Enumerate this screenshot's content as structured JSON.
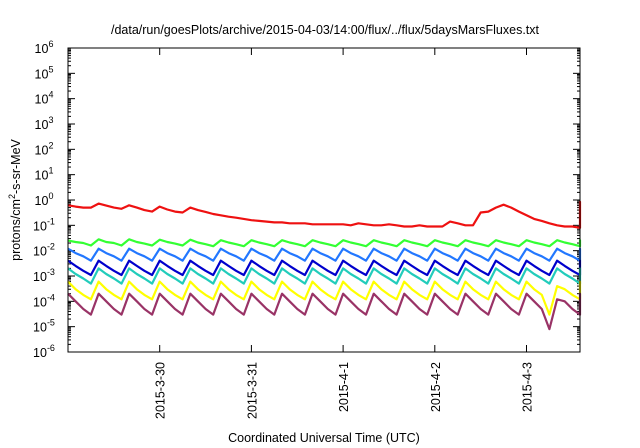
{
  "chart_data": {
    "type": "line",
    "title": "/data/run/goesPlots/archive/2015-04-03/14:00/flux/../flux/5daysMarsFluxes.txt",
    "xlabel": "Coordinated Universal Time (UTC)",
    "ylabel_parts": {
      "pre": "protons/cm",
      "sup": "2",
      "post": "-s-sr-MeV"
    },
    "y_scale": "log",
    "ylim": [
      1e-06,
      1000000.0
    ],
    "y_ticks": [
      {
        "value": 1e-06,
        "base": "10",
        "exp": "-6"
      },
      {
        "value": 1e-05,
        "base": "10",
        "exp": "-5"
      },
      {
        "value": 0.0001,
        "base": "10",
        "exp": "-4"
      },
      {
        "value": 0.001,
        "base": "10",
        "exp": "-3"
      },
      {
        "value": 0.01,
        "base": "10",
        "exp": "-2"
      },
      {
        "value": 0.1,
        "base": "10",
        "exp": "-1"
      },
      {
        "value": 1,
        "base": "10",
        "exp": "0"
      },
      {
        "value": 10.0,
        "base": "10",
        "exp": "1"
      },
      {
        "value": 100.0,
        "base": "10",
        "exp": "2"
      },
      {
        "value": 1000.0,
        "base": "10",
        "exp": "3"
      },
      {
        "value": 10000.0,
        "base": "10",
        "exp": "4"
      },
      {
        "value": 100000.0,
        "base": "10",
        "exp": "5"
      },
      {
        "value": 1000000.0,
        "base": "10",
        "exp": "6"
      }
    ],
    "xlim": [
      "2015-03-29T00:00",
      "2015-04-03T14:00"
    ],
    "x_ticks": [
      {
        "label": "2015-3-30",
        "value": "2015-03-30T00:00"
      },
      {
        "label": "2015-3-31",
        "value": "2015-03-31T00:00"
      },
      {
        "label": "2015-4-1",
        "value": "2015-04-01T00:00"
      },
      {
        "label": "2015-4-2",
        "value": "2015-04-02T00:00"
      },
      {
        "label": "2015-4-3",
        "value": "2015-04-03T00:00"
      }
    ],
    "grid": false,
    "legend": "none",
    "sampling_hours": 2,
    "series": [
      {
        "color": "#ee1111",
        "description": "uppermost curve; ~0.5 at start, falling to ~0.1, with recurring rises to ~0.8",
        "values": [
          0.62,
          0.55,
          0.5,
          0.5,
          0.72,
          0.6,
          0.5,
          0.45,
          0.62,
          0.5,
          0.4,
          0.35,
          0.55,
          0.42,
          0.35,
          0.32,
          0.5,
          0.4,
          0.34,
          0.28,
          0.25,
          0.22,
          0.2,
          0.18,
          0.16,
          0.15,
          0.14,
          0.13,
          0.13,
          0.12,
          0.12,
          0.12,
          0.11,
          0.11,
          0.11,
          0.11,
          0.11,
          0.1,
          0.12,
          0.11,
          0.1,
          0.1,
          0.11,
          0.1,
          0.09,
          0.09,
          0.1,
          0.09,
          0.09,
          0.09,
          0.14,
          0.12,
          0.1,
          0.1,
          0.32,
          0.35,
          0.5,
          0.65,
          0.5,
          0.35,
          0.25,
          0.18,
          0.15,
          0.12,
          0.1,
          0.09,
          0.09,
          0.08,
          0.08,
          0.08,
          0.09,
          0.08,
          0.08,
          0.13,
          0.11,
          0.2,
          0.45,
          0.85,
          0.75,
          0.6,
          0.45,
          0.3,
          0.22,
          0.16,
          0.13,
          0.11,
          0.1,
          0.09,
          0.08,
          0.08,
          0.12,
          0.11,
          0.16,
          0.5,
          0.55,
          0.48,
          0.6,
          0.65,
          0.55,
          0.45,
          0.35,
          0.25,
          0.18,
          0.14,
          0.12,
          0.11,
          0.1,
          0.09,
          0.1,
          0.12,
          0.1,
          0.16,
          0.16
        ]
      },
      {
        "color": "#33ff33",
        "description": "second curve; ~0.02-0.03 throughout, small dips every ~10 h",
        "values": [
          0.025,
          0.022,
          0.02,
          0.016,
          0.028,
          0.022,
          0.02,
          0.016,
          0.028,
          0.022,
          0.019,
          0.016,
          0.027,
          0.022,
          0.019,
          0.016,
          0.027,
          0.021,
          0.018,
          0.015,
          0.026,
          0.021,
          0.018,
          0.015,
          0.026,
          0.021,
          0.018,
          0.015,
          0.026,
          0.021,
          0.018,
          0.015,
          0.026,
          0.021,
          0.018,
          0.015,
          0.026,
          0.021,
          0.018,
          0.015,
          0.026,
          0.021,
          0.018,
          0.015,
          0.026,
          0.021,
          0.018,
          0.015,
          0.026,
          0.021,
          0.018,
          0.015,
          0.026,
          0.021,
          0.018,
          0.015,
          0.026,
          0.021,
          0.018,
          0.015,
          0.026,
          0.021,
          0.018,
          0.015,
          0.026,
          0.021,
          0.018,
          0.015,
          0.026,
          0.021,
          0.018,
          0.015,
          0.026,
          0.021,
          0.018,
          0.015,
          0.026,
          0.021,
          0.018,
          0.015,
          0.026,
          0.021,
          0.018,
          0.015,
          0.026,
          0.021,
          0.018,
          0.015,
          0.026,
          0.021,
          0.018,
          0.015,
          0.026,
          0.021,
          0.018,
          0.015,
          0.026,
          0.021,
          0.018,
          0.015,
          0.026,
          0.021,
          0.018,
          0.015,
          0.026,
          0.021,
          0.018,
          0.015,
          0.026,
          0.021,
          0.018,
          0.015,
          0.026
        ]
      },
      {
        "color": "#2277ff",
        "description": "third curve; sawtooth between ~0.004 and ~0.015",
        "values": [
          0.012,
          0.008,
          0.006,
          0.004,
          0.012,
          0.008,
          0.006,
          0.004,
          0.012,
          0.008,
          0.006,
          0.004,
          0.012,
          0.008,
          0.006,
          0.004,
          0.012,
          0.008,
          0.006,
          0.004,
          0.012,
          0.008,
          0.006,
          0.004,
          0.012,
          0.008,
          0.006,
          0.004,
          0.012,
          0.008,
          0.006,
          0.004,
          0.012,
          0.008,
          0.006,
          0.004,
          0.012,
          0.008,
          0.006,
          0.004,
          0.012,
          0.008,
          0.006,
          0.004,
          0.012,
          0.008,
          0.006,
          0.004,
          0.012,
          0.008,
          0.006,
          0.004,
          0.012,
          0.008,
          0.006,
          0.004,
          0.012,
          0.008,
          0.006,
          0.004,
          0.012,
          0.008,
          0.006,
          0.004,
          0.012,
          0.008,
          0.006,
          0.004,
          0.012,
          0.008,
          0.006,
          0.004,
          0.012,
          0.008,
          0.006,
          0.004,
          0.012,
          0.008,
          0.006,
          0.004,
          0.012,
          0.008,
          0.006,
          0.004,
          0.012,
          0.008,
          0.006,
          0.004,
          0.012,
          0.008,
          0.006,
          0.004,
          0.012,
          0.008,
          0.006,
          0.004,
          0.012,
          0.008,
          0.006,
          0.004,
          0.012,
          0.008,
          0.006,
          0.004,
          0.012,
          0.008,
          0.006,
          0.004,
          0.012,
          0.008,
          0.006,
          0.004,
          0.012
        ]
      },
      {
        "color": "#0000cc",
        "description": "fourth curve; sawtooth between ~0.001 and ~0.005",
        "values": [
          0.004,
          0.0025,
          0.0016,
          0.0011,
          0.004,
          0.0025,
          0.0016,
          0.0011,
          0.004,
          0.0025,
          0.0016,
          0.0011,
          0.004,
          0.0025,
          0.0016,
          0.0011,
          0.004,
          0.0025,
          0.0016,
          0.0011,
          0.004,
          0.0025,
          0.0016,
          0.0011,
          0.004,
          0.0025,
          0.0016,
          0.0011,
          0.004,
          0.0025,
          0.0016,
          0.0011,
          0.004,
          0.0025,
          0.0016,
          0.0011,
          0.004,
          0.0025,
          0.0016,
          0.0011,
          0.004,
          0.0025,
          0.0016,
          0.0011,
          0.004,
          0.0025,
          0.0016,
          0.0011,
          0.004,
          0.0025,
          0.0016,
          0.0011,
          0.004,
          0.0025,
          0.0016,
          0.0011,
          0.004,
          0.0025,
          0.0016,
          0.0011,
          0.004,
          0.0025,
          0.0016,
          0.0011,
          0.004,
          0.0025,
          0.0016,
          0.0011,
          0.004,
          0.0025,
          0.0016,
          0.0011,
          0.004,
          0.0025,
          0.0016,
          0.0011,
          0.004,
          0.0025,
          0.0016,
          0.0011,
          0.004,
          0.0025,
          0.0016,
          0.0011,
          0.004,
          0.0025,
          0.0016,
          0.0011,
          0.004,
          0.0025,
          0.0016,
          0.0011,
          0.004,
          0.0025,
          0.0016,
          0.0011,
          0.004,
          0.0025,
          0.0016,
          0.0011,
          0.004,
          0.0025,
          0.0016,
          0.0011,
          0.004,
          0.0025,
          0.0016,
          0.0011,
          0.004,
          0.0025,
          0.0016,
          0.0011,
          0.004
        ]
      },
      {
        "color": "#22ccbb",
        "description": "fifth curve; sawtooth between ~0.0005 and ~0.002",
        "values": [
          0.002,
          0.0012,
          0.0008,
          0.0005,
          0.002,
          0.0012,
          0.0008,
          0.0005,
          0.002,
          0.0012,
          0.0008,
          0.0005,
          0.002,
          0.0012,
          0.0008,
          0.0005,
          0.002,
          0.0012,
          0.0008,
          0.0005,
          0.002,
          0.0012,
          0.0008,
          0.0005,
          0.002,
          0.0012,
          0.0008,
          0.0005,
          0.002,
          0.0012,
          0.0008,
          0.0005,
          0.002,
          0.0012,
          0.0008,
          0.0005,
          0.002,
          0.0012,
          0.0008,
          0.0005,
          0.002,
          0.0012,
          0.0008,
          0.0005,
          0.002,
          0.0012,
          0.0008,
          0.0005,
          0.002,
          0.0012,
          0.0008,
          0.0005,
          0.002,
          0.0012,
          0.0008,
          0.0005,
          0.002,
          0.0012,
          0.0008,
          0.0005,
          0.002,
          0.0012,
          0.0008,
          0.0005,
          0.002,
          0.0012,
          0.0008,
          0.0005,
          0.002,
          0.0012,
          0.0008,
          0.0005,
          0.002,
          0.0012,
          0.0008,
          0.0005,
          0.002,
          0.0012,
          0.0008,
          0.0005,
          0.002,
          0.0012,
          0.0008,
          0.0005,
          0.002,
          0.0012,
          0.0008,
          0.0005,
          0.002,
          0.0012,
          0.0008,
          0.0005,
          0.002,
          0.0012,
          0.0008,
          0.0005,
          0.002,
          0.0012,
          0.0008,
          0.0005,
          0.002,
          0.0012,
          0.0008,
          0.0005,
          0.002,
          0.0012,
          0.0008,
          0.0005,
          0.002,
          0.0012,
          0.0008,
          0.0005,
          0.002
        ]
      },
      {
        "color": "#ffff00",
        "description": "sixth curve; sawtooth between ~0.00012 and ~0.0006, dip near 2015-4-1 18h",
        "values": [
          0.0006,
          0.0003,
          0.00018,
          0.00012,
          0.0006,
          0.0003,
          0.00018,
          0.00012,
          0.0006,
          0.0003,
          0.00018,
          0.00012,
          0.0006,
          0.0003,
          0.00018,
          0.00012,
          0.0006,
          0.0003,
          0.00018,
          0.00012,
          0.0006,
          0.0003,
          0.00018,
          0.00012,
          0.0006,
          0.0003,
          0.00018,
          0.00012,
          0.0006,
          0.0003,
          0.00018,
          0.00012,
          0.0006,
          0.0003,
          0.00018,
          0.00012,
          0.0006,
          0.0003,
          0.00018,
          0.00012,
          0.0006,
          0.0003,
          0.00018,
          0.00012,
          0.0006,
          0.0003,
          0.00018,
          0.00012,
          0.0006,
          0.0003,
          0.00018,
          0.00012,
          0.0006,
          0.0003,
          0.00018,
          0.00012,
          0.0006,
          0.0003,
          0.00018,
          0.00012,
          0.0006,
          0.0003,
          0.00018,
          3e-05,
          0.0004,
          0.0003,
          0.00018,
          0.00012,
          0.0006,
          0.0003,
          0.00018,
          0.00012,
          0.0006,
          0.0003,
          0.00018,
          0.00012,
          0.0006,
          0.0003,
          0.00018,
          0.00012,
          0.0006,
          0.0003,
          0.00018,
          0.00012,
          0.0006,
          0.0003,
          0.00018,
          0.00012,
          0.0006,
          0.0003,
          0.00018,
          0.00012,
          0.0006,
          0.0003,
          0.00018,
          0.00012,
          0.0006,
          0.0003,
          0.00018,
          0.00012,
          0.0006,
          0.0003,
          0.00018,
          0.00012,
          0.0006,
          0.0003,
          0.00018,
          0.00012,
          0.0006,
          0.0003,
          0.00018,
          0.00012,
          0.0006
        ]
      },
      {
        "color": "#993366",
        "description": "lowest curve; sawtooth between ~0.00003 and ~0.0002, dip near 2015-4-1 18h",
        "values": [
          0.0002,
          0.0001,
          5e-05,
          3e-05,
          0.0002,
          0.0001,
          5e-05,
          3e-05,
          0.0002,
          0.0001,
          5e-05,
          3e-05,
          0.0002,
          0.0001,
          5e-05,
          3e-05,
          0.0002,
          0.0001,
          5e-05,
          3e-05,
          0.0002,
          0.0001,
          5e-05,
          3e-05,
          0.0002,
          0.0001,
          5e-05,
          3e-05,
          0.0002,
          0.0001,
          5e-05,
          3e-05,
          0.0002,
          0.0001,
          5e-05,
          3e-05,
          0.0002,
          0.0001,
          5e-05,
          3e-05,
          0.0002,
          0.0001,
          5e-05,
          3e-05,
          0.0002,
          0.0001,
          5e-05,
          3e-05,
          0.0002,
          0.0001,
          5e-05,
          3e-05,
          0.0002,
          0.0001,
          5e-05,
          3e-05,
          0.0002,
          0.0001,
          5e-05,
          3e-05,
          0.0002,
          0.0001,
          5e-05,
          8e-06,
          0.00012,
          0.0001,
          5e-05,
          3e-05,
          0.0002,
          0.0001,
          5e-05,
          3e-05,
          0.0002,
          0.0001,
          5e-05,
          3e-05,
          0.0002,
          0.0001,
          5e-05,
          3e-05,
          0.0002,
          0.0001,
          5e-05,
          3e-05,
          0.0002,
          0.0001,
          5e-05,
          3e-05,
          0.0002,
          0.0001,
          5e-05,
          3e-05,
          0.0002,
          0.0001,
          5e-05,
          3e-05,
          0.0002,
          0.0001,
          5e-05,
          3e-05,
          0.0002,
          0.0001,
          5e-05,
          3e-05,
          0.0002,
          0.0001,
          5e-05,
          3e-05,
          0.0002,
          0.0001,
          5e-05,
          3e-05,
          0.0002
        ]
      }
    ]
  }
}
